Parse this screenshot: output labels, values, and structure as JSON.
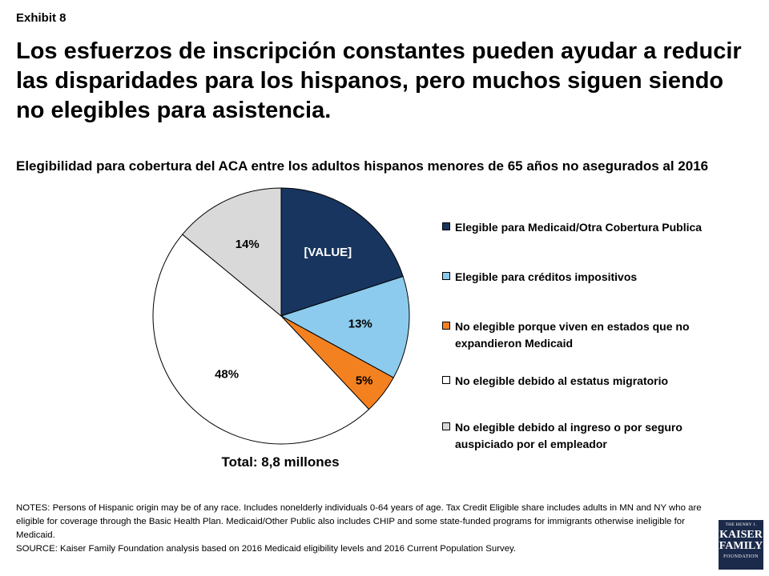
{
  "exhibit": "Exhibit 8",
  "headline": "Los esfuerzos de inscripción constantes pueden ayudar a reducir las disparidades para los hispanos, pero muchos siguen siendo no elegibles para asistencia.",
  "chart_data": {
    "type": "pie",
    "title": "Elegibilidad para cobertura del ACA entre los adultos hispanos menores de 65 años no asegurados al 2016",
    "subtitle": "Total: 8,8 millones",
    "series": [
      {
        "name": "Elegible para Medicaid/Otra Cobertura Publica",
        "value": 20,
        "label": "[VALUE]",
        "color": "#17355e",
        "label_color": "#ffffff"
      },
      {
        "name": "Elegible para créditos impositivos",
        "value": 13,
        "label": "13%",
        "color": "#8ccbed",
        "label_color": "#000000"
      },
      {
        "name": "No elegible porque viven en estados que no expandieron Medicaid",
        "value": 5,
        "label": "5%",
        "color": "#f48120",
        "label_color": "#000000"
      },
      {
        "name": "No elegible debido al estatus migratorio",
        "value": 48,
        "label": "48%",
        "color": "#ffffff",
        "label_color": "#000000"
      },
      {
        "name": "No elegible debido al ingreso o por seguro auspiciado por el empleador",
        "value": 14,
        "label": "14%",
        "color": "#d9d9d9",
        "label_color": "#000000"
      }
    ],
    "legend_position": "right"
  },
  "notes": "NOTES: Persons of Hispanic origin may be of any race. Includes nonelderly individuals 0-64 years of age. Tax Credit Eligible share includes adults in MN and NY who are eligible for coverage through the Basic Health Plan. Medicaid/Other Public also includes CHIP and some state-funded programs for immigrants otherwise ineligible for Medicaid.",
  "source": "SOURCE: Kaiser Family Foundation analysis based on 2016 Medicaid eligibility levels and 2016 Current Population Survey.",
  "logo": {
    "line1": "THE HENRY J.",
    "line2": "KAISER",
    "line3": "FAMILY",
    "line4": "FOUNDATION"
  }
}
